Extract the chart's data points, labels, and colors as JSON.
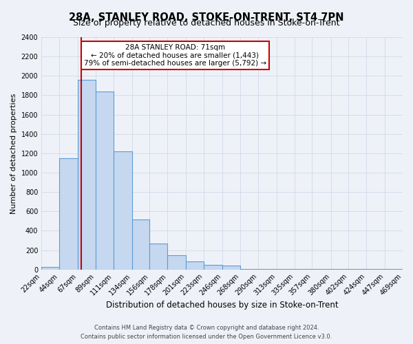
{
  "title": "28A, STANLEY ROAD, STOKE-ON-TRENT, ST4 7PN",
  "subtitle": "Size of property relative to detached houses in Stoke-on-Trent",
  "xlabel": "Distribution of detached houses by size in Stoke-on-Trent",
  "ylabel": "Number of detached properties",
  "bin_labels": [
    "22sqm",
    "44sqm",
    "67sqm",
    "89sqm",
    "111sqm",
    "134sqm",
    "156sqm",
    "178sqm",
    "201sqm",
    "223sqm",
    "246sqm",
    "268sqm",
    "290sqm",
    "313sqm",
    "335sqm",
    "357sqm",
    "380sqm",
    "402sqm",
    "424sqm",
    "447sqm",
    "469sqm"
  ],
  "bin_edges": [
    22,
    44,
    67,
    89,
    111,
    134,
    156,
    178,
    201,
    223,
    246,
    268,
    290,
    313,
    335,
    357,
    380,
    402,
    424,
    447,
    469
  ],
  "bar_heights": [
    25,
    1150,
    1960,
    1840,
    1220,
    520,
    265,
    150,
    80,
    50,
    40,
    5,
    5,
    5,
    5,
    5,
    5,
    5,
    5,
    5
  ],
  "bar_color": "#c5d8f0",
  "bar_edge_color": "#5b9bd5",
  "vline_x": 71,
  "vline_color": "#cc0000",
  "ylim": [
    0,
    2400
  ],
  "yticks": [
    0,
    200,
    400,
    600,
    800,
    1000,
    1200,
    1400,
    1600,
    1800,
    2000,
    2200,
    2400
  ],
  "annotation_title": "28A STANLEY ROAD: 71sqm",
  "annotation_line1": "← 20% of detached houses are smaller (1,443)",
  "annotation_line2": "79% of semi-detached houses are larger (5,792) →",
  "annotation_box_color": "#ffffff",
  "annotation_box_edge": "#cc0000",
  "footer_line1": "Contains HM Land Registry data © Crown copyright and database right 2024.",
  "footer_line2": "Contains public sector information licensed under the Open Government Licence v3.0.",
  "bg_color": "#eef2f8",
  "plot_bg_color": "#eef2f8",
  "grid_color": "#d0d8e8",
  "title_fontsize": 10.5,
  "subtitle_fontsize": 9,
  "xlabel_fontsize": 8.5,
  "ylabel_fontsize": 8,
  "tick_fontsize": 7,
  "footer_fontsize": 6,
  "annotation_fontsize": 7.5
}
